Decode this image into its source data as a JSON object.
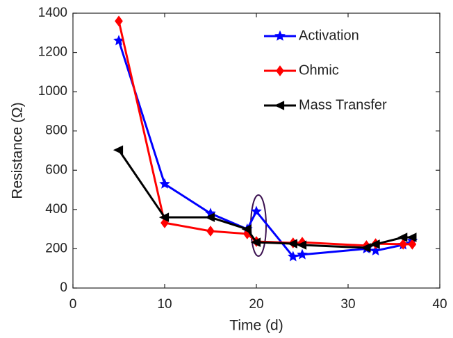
{
  "chart_data": {
    "type": "line",
    "xlabel": "Time (d)",
    "ylabel": "Resistance (Ω)",
    "x": [
      5,
      10,
      15,
      19,
      20,
      24,
      25,
      32,
      33,
      36,
      37
    ],
    "series": [
      {
        "name": "Activation",
        "color": "#0000ff",
        "marker": "star",
        "values": [
          1260,
          530,
          380,
          300,
          390,
          160,
          170,
          200,
          190,
          220,
          240
        ]
      },
      {
        "name": "Ohmic",
        "color": "#ff0000",
        "marker": "diamond",
        "values": [
          1360,
          332,
          290,
          276,
          237,
          230,
          233,
          216,
          226,
          223,
          223
        ]
      },
      {
        "name": "Mass Transfer",
        "color": "#000000",
        "marker": "triangle-left",
        "values": [
          703,
          360,
          360,
          300,
          233,
          226,
          219,
          205,
          223,
          258,
          258
        ]
      }
    ],
    "xlim": [
      0,
      40
    ],
    "xticks": [
      0,
      10,
      20,
      30,
      40
    ],
    "ylim": [
      0,
      1400
    ],
    "yticks": [
      0,
      200,
      400,
      600,
      800,
      1000,
      1200,
      1400
    ],
    "legend": "upper-right",
    "grid": false
  }
}
